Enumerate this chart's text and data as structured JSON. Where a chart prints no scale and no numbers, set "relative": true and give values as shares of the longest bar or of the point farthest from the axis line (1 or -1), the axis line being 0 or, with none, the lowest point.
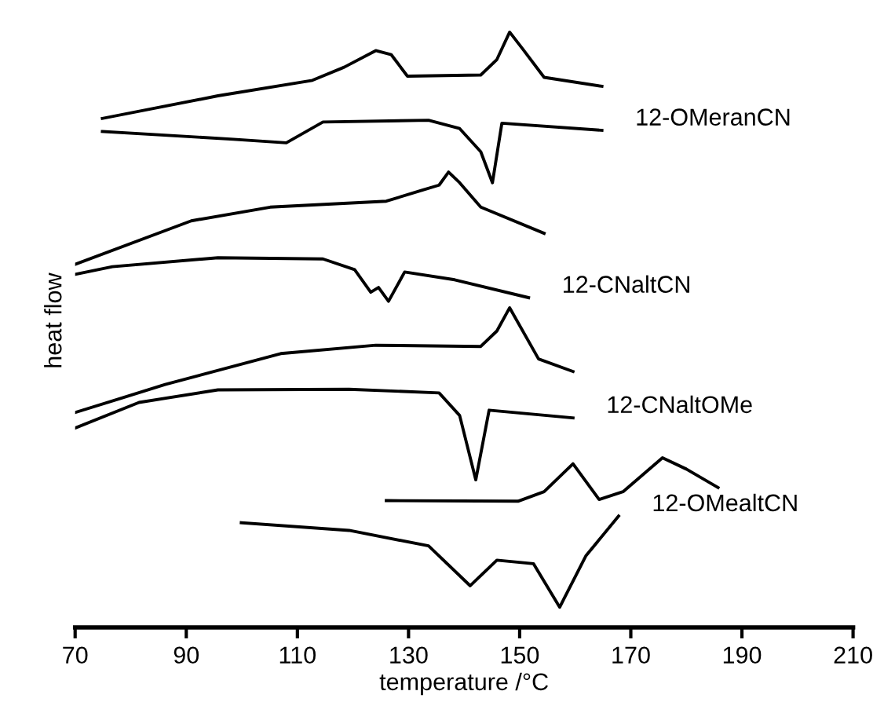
{
  "chart_data": {
    "type": "line",
    "relative": true,
    "xlabel": "temperature /°C",
    "ylabel": "heat flow",
    "xlim": [
      70,
      210
    ],
    "xticks": [
      70,
      90,
      110,
      130,
      150,
      170,
      190,
      210
    ],
    "legend": false,
    "grid": false,
    "marker": "none",
    "line_style": "solid",
    "series": [
      {
        "color": "#000000",
        "x": [
          74.9,
          95.7,
          112.7,
          118.4,
          124.1,
          126.9,
          129.8,
          143.0,
          145.9,
          148.2,
          150.6,
          154.4,
          164.8
        ],
        "values": [
          0.855,
          0.893,
          0.919,
          0.941,
          0.969,
          0.962,
          0.926,
          0.928,
          0.954,
          1.0,
          0.971,
          0.924,
          0.909
        ]
      },
      {
        "name": "12-OMeranCN",
        "color": "#000000",
        "x": [
          74.9,
          98.5,
          108.0,
          114.6,
          133.6,
          139.2,
          143.0,
          145.1,
          146.8,
          164.8
        ],
        "values": [
          0.833,
          0.82,
          0.814,
          0.849,
          0.852,
          0.838,
          0.799,
          0.747,
          0.847,
          0.835
        ]
      },
      {
        "color": "#000000",
        "x": [
          70,
          90.9,
          105.1,
          126.0,
          132.6,
          135.5,
          137.2,
          139.2,
          143.0,
          154.4
        ],
        "values": [
          0.61,
          0.683,
          0.706,
          0.716,
          0.735,
          0.743,
          0.765,
          0.747,
          0.706,
          0.662
        ]
      },
      {
        "name": "12-CNaltCN",
        "color": "#000000",
        "x": [
          70,
          76.7,
          95.7,
          114.6,
          120.3,
          123.2,
          124.6,
          126.4,
          129.3,
          138.3,
          151.6
        ],
        "values": [
          0.593,
          0.606,
          0.621,
          0.619,
          0.601,
          0.563,
          0.571,
          0.548,
          0.597,
          0.584,
          0.554
        ]
      },
      {
        "color": "#000000",
        "x": [
          70,
          86.2,
          107.0,
          124.1,
          143.0,
          145.9,
          148.2,
          153.4,
          159.6
        ],
        "values": [
          0.361,
          0.408,
          0.46,
          0.474,
          0.472,
          0.498,
          0.537,
          0.451,
          0.43
        ]
      },
      {
        "name": "12-CNaltOMe",
        "color": "#000000",
        "x": [
          70,
          81.5,
          95.7,
          119.3,
          135.5,
          139.2,
          142.1,
          144.5,
          159.6
        ],
        "values": [
          0.335,
          0.378,
          0.399,
          0.4,
          0.394,
          0.356,
          0.248,
          0.365,
          0.352
        ]
      },
      {
        "color": "#000000",
        "x": [
          126.0,
          149.7,
          154.4,
          159.6,
          164.3,
          168.6,
          175.7,
          180.0,
          185.7
        ],
        "values": [
          0.213,
          0.212,
          0.228,
          0.275,
          0.215,
          0.228,
          0.285,
          0.266,
          0.235
        ]
      },
      {
        "name": "12-OMealtCN",
        "color": "#000000",
        "x": [
          99.9,
          119.3,
          133.6,
          141.1,
          145.9,
          152.5,
          157.2,
          161.9,
          167.8
        ],
        "values": [
          0.176,
          0.163,
          0.137,
          0.07,
          0.113,
          0.107,
          0.034,
          0.12,
          0.187
        ]
      }
    ]
  }
}
